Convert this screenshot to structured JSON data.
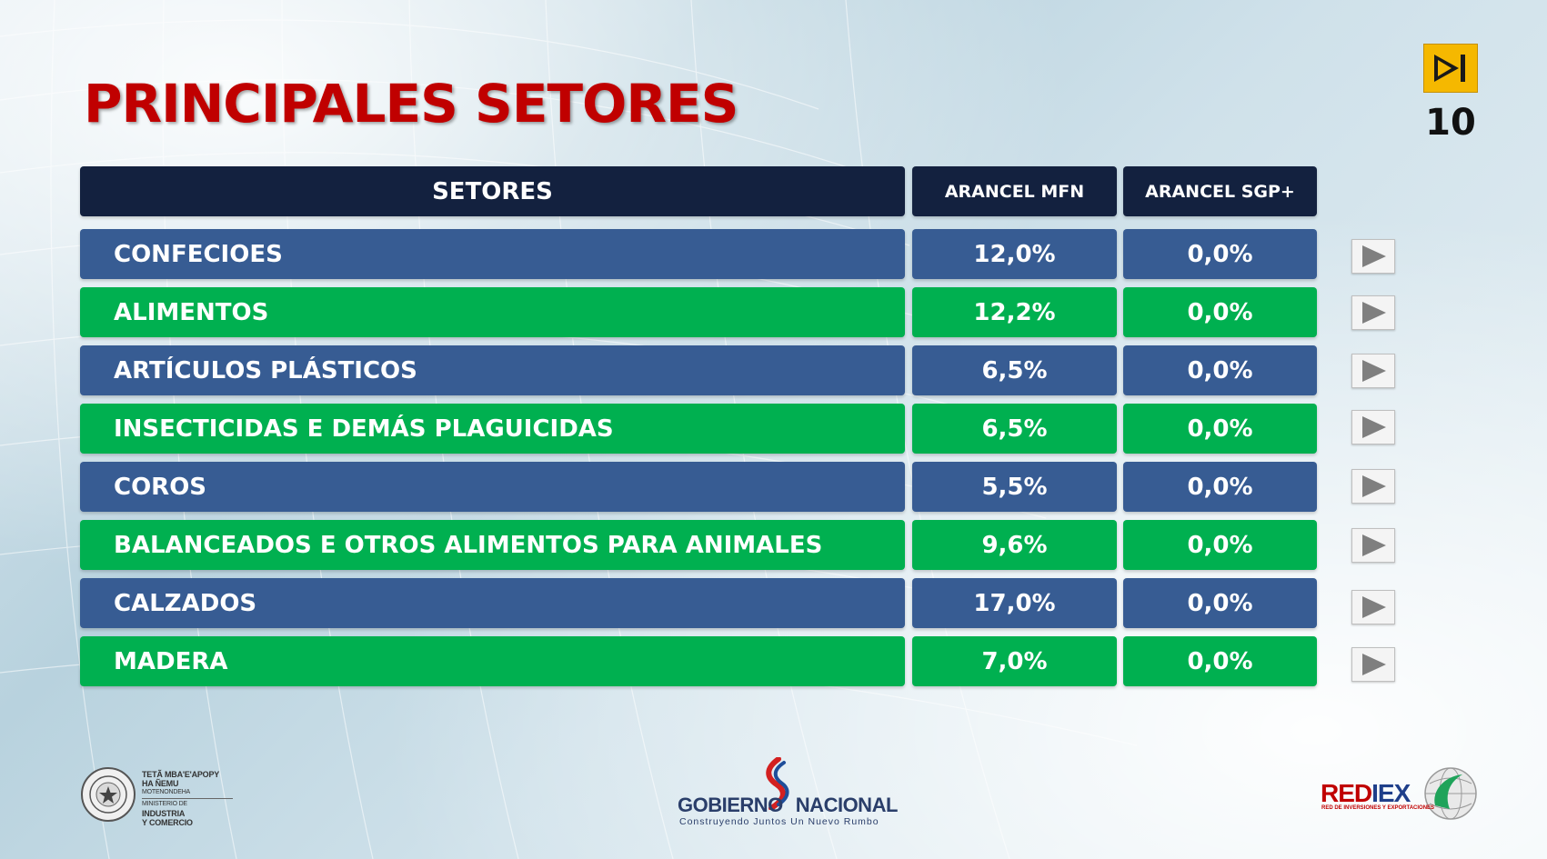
{
  "title": "PRINCIPALES SETORES",
  "page_number": "10",
  "table": {
    "headers": {
      "sector": "SETORES",
      "mfn": "ARANCEL MFN",
      "sgp": "ARANCEL SGP+"
    },
    "rows": [
      {
        "sector": "CONFECIOES",
        "mfn": "12,0%",
        "sgp": "0,0%",
        "color": "blue"
      },
      {
        "sector": "ALIMENTOS",
        "mfn": "12,2%",
        "sgp": "0,0%",
        "color": "green"
      },
      {
        "sector": "ARTÍCULOS PLÁSTICOS",
        "mfn": "6,5%",
        "sgp": "0,0%",
        "color": "blue"
      },
      {
        "sector": "INSECTICIDAS E DEMÁS PLAGUICIDAS",
        "mfn": "6,5%",
        "sgp": "0,0%",
        "color": "green"
      },
      {
        "sector": "COROS",
        "mfn": "5,5%",
        "sgp": "0,0%",
        "color": "blue"
      },
      {
        "sector": "BALANCEADOS E OTROS ALIMENTOS PARA ANIMALES",
        "mfn": "9,6%",
        "sgp": "0,0%",
        "color": "green"
      },
      {
        "sector": "CALZADOS",
        "mfn": "17,0%",
        "sgp": "0,0%",
        "color": "blue"
      },
      {
        "sector": "MADERA",
        "mfn": "7,0%",
        "sgp": "0,0%",
        "color": "green"
      }
    ]
  },
  "colors": {
    "title": "#c00000",
    "header": "#13213f",
    "blue_row": "#375c93",
    "green_row": "#00b050",
    "nav_button": "#f5b800"
  },
  "icons": {
    "nav": "skip-to-end-icon",
    "row_action": "play-icon"
  },
  "footer": {
    "ministerio": {
      "line1": "TETÃ MBA'E'APOPY",
      "line2": "HA ÑEMU",
      "line3": "MOTENONDEHA",
      "line4": "MINISTERIO DE",
      "line5": "INDUSTRIA",
      "line6": "Y COMERCIO"
    },
    "gobierno": {
      "name_left": "GOBIERNO",
      "name_right": "NACIONAL",
      "tagline": "Construyendo Juntos Un Nuevo Rumbo"
    },
    "rediex": {
      "name_red": "RED",
      "name_blue": "IEX",
      "tagline": "RED DE INVERSIONES Y EXPORTACIONES"
    }
  }
}
